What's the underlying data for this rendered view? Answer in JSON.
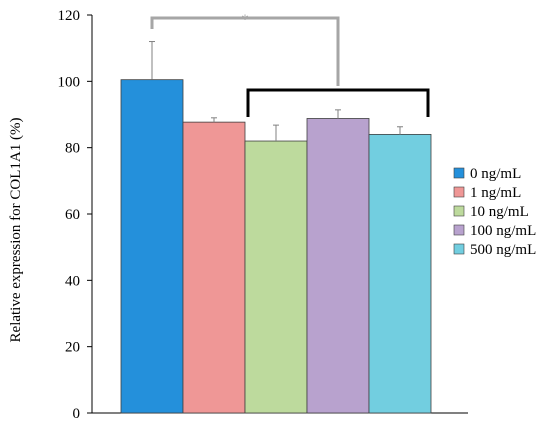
{
  "chart_data": {
    "type": "bar",
    "categories": [
      "0 ng/mL",
      "1 ng/mL",
      "10 ng/mL",
      "100 ng/mL",
      "500 ng/mL"
    ],
    "values": [
      100.5,
      87.7,
      82.0,
      88.8,
      84.0
    ],
    "errors": [
      11.5,
      1.3,
      4.8,
      2.6,
      2.3
    ],
    "colors": [
      "#2490DB",
      "#EF9796",
      "#BDDA9D",
      "#B8A2CE",
      "#72CEE0"
    ],
    "ylabel": "Relative expression for COL1A1 (%)",
    "ylim": [
      0,
      120
    ],
    "yticks": [
      0,
      20,
      40,
      60,
      80,
      100,
      120
    ],
    "ytick_labels": [
      "0",
      "20",
      "40",
      "60",
      "80",
      "100",
      "120"
    ],
    "grid": false,
    "legend_position": "right",
    "legend": [
      "0 ng/mL",
      "1 ng/mL",
      "10 ng/mL",
      "100 ng/mL",
      "500 ng/mL"
    ],
    "significance": {
      "label": "*",
      "bracket_color": "#A6A6A6",
      "group_bracket_color": "#000000"
    }
  }
}
